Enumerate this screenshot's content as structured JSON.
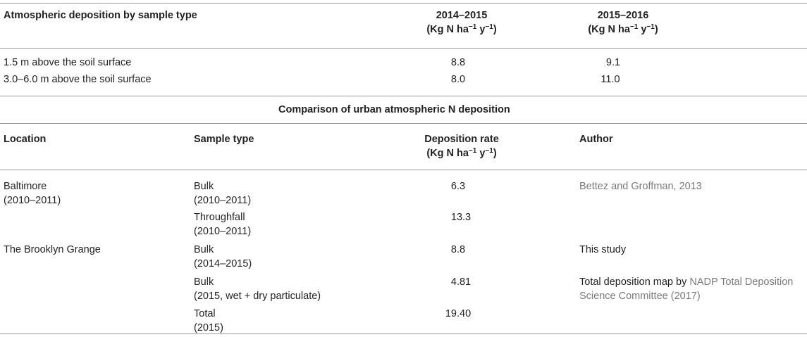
{
  "top_table": {
    "header": {
      "col1": "Atmospheric deposition by sample type",
      "col2_line1": "2014–2015",
      "col3_line1": "2015–2016",
      "unit_prefix": "(Kg N ha",
      "unit_exp1": "−1",
      "unit_mid": " y",
      "unit_exp2": "−1",
      "unit_suffix": ")"
    },
    "rows": [
      {
        "label": "1.5 m above the soil surface",
        "v2014": "8.8",
        "v2015": "9.1"
      },
      {
        "label": "3.0–6.0 m above the soil surface",
        "v2014": "8.0",
        "v2015": "11.0"
      }
    ]
  },
  "section_title": "Comparison of urban atmospheric N deposition",
  "bottom_table": {
    "header": {
      "location": "Location",
      "sample_type": "Sample type",
      "rate_line1": "Deposition rate",
      "author": "Author"
    },
    "rows": [
      {
        "loc1": "Baltimore",
        "loc2": "(2010–2011)",
        "type1": "Bulk",
        "type2": "(2010–2011)",
        "rate": "6.3",
        "author1": "Bettez and Groffman, 2013",
        "author2": ""
      },
      {
        "loc1": "",
        "loc2": "",
        "type1": "Throughfall",
        "type2": "(2010–2011)",
        "rate": "13.3",
        "author1": "",
        "author2": ""
      },
      {
        "loc1": "The Brooklyn Grange",
        "loc2": "",
        "type1": "Bulk",
        "type2": "(2014–2015)",
        "rate": "8.8",
        "author1": "This study",
        "author2": ""
      },
      {
        "loc1": "",
        "loc2": "",
        "type1": "Bulk",
        "type2": "(2015, wet + dry particulate)",
        "rate": "4.81",
        "author1_plain": "Total deposition map by ",
        "author1_ref": "NADP Total Deposition",
        "author2_ref": "Science Committee (2017)"
      },
      {
        "loc1": "",
        "loc2": "",
        "type1": "Total",
        "type2": "(2015)",
        "rate": "19.40",
        "author1": "",
        "author2": ""
      }
    ]
  }
}
